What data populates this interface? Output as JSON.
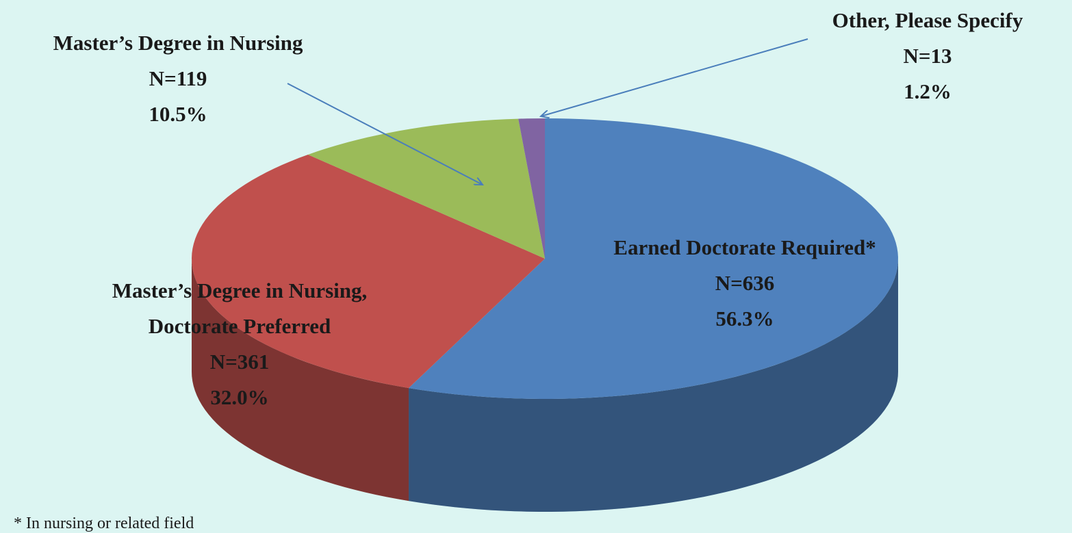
{
  "chart_data": {
    "type": "pie3d",
    "categories": [
      "Earned Doctorate Required*",
      "Master’s Degree in Nursing, Doctorate Preferred",
      "Master’s Degree in Nursing",
      "Other, Please Specify"
    ],
    "values": [
      56.3,
      32.0,
      10.5,
      1.2
    ],
    "value_labels": [
      "56.3%",
      "32.0%",
      "10.5%",
      "1.2%"
    ],
    "counts": [
      636,
      361,
      119,
      13
    ],
    "count_labels": [
      "N=636",
      "N=361",
      "N=119",
      "N=13"
    ],
    "colors": [
      "#4f81bd",
      "#c0504d",
      "#9bbb59",
      "#8064a2"
    ],
    "footnote": "* In nursing or related field"
  }
}
